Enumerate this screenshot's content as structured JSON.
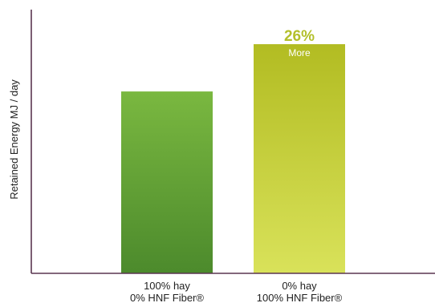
{
  "chart_data": {
    "type": "bar",
    "title": "",
    "xlabel": "",
    "ylabel": "Retained Energy MJ / day",
    "categories": [
      [
        "100% hay",
        "0% HNF Fiber®"
      ],
      [
        "0% hay",
        "100% HNF Fiber®"
      ]
    ],
    "values": [
      100,
      126
    ],
    "ylim": [
      0,
      145
    ],
    "grid": false,
    "y_tick_labels_shown": false,
    "bar_gradients": [
      {
        "top": "#7ab840",
        "bottom": "#4c8a2c"
      },
      {
        "top": "#b2bc22",
        "bottom": "#d9e25a"
      }
    ],
    "axis_color": "#5a3550",
    "annotation": {
      "bar_index": 1,
      "percent": "26%",
      "word": "More",
      "percent_color": "#b3bf2a"
    }
  }
}
